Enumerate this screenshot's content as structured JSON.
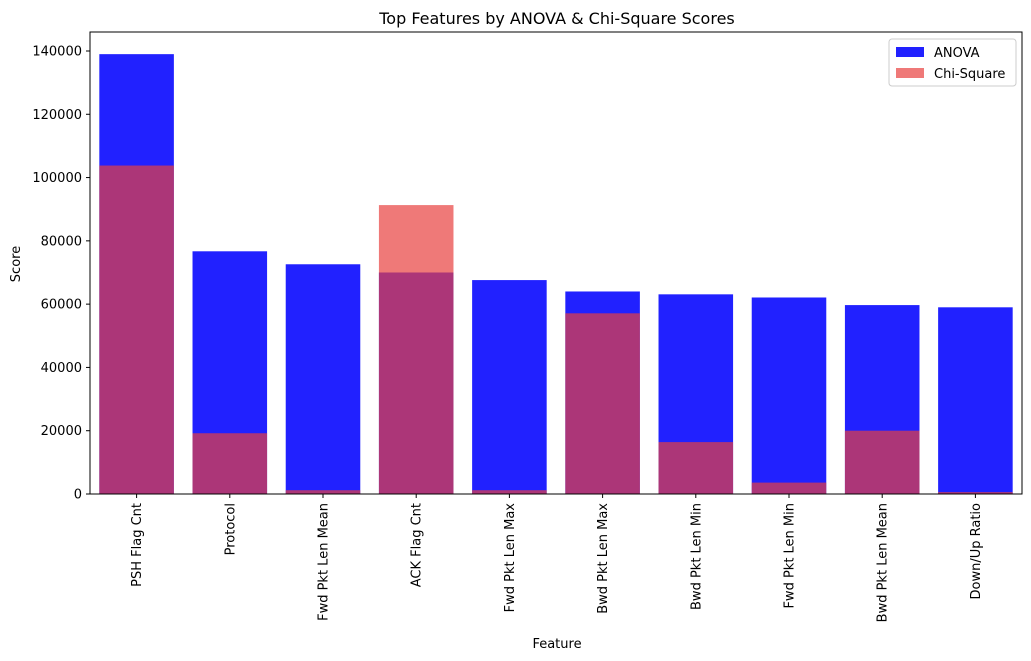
{
  "chart_data": {
    "type": "bar",
    "title": "Top Features by ANOVA & Chi-Square Scores",
    "xlabel": "Feature",
    "ylabel": "Score",
    "ylim": [
      0,
      146000
    ],
    "yticks": [
      0,
      20000,
      40000,
      60000,
      80000,
      100000,
      120000,
      140000
    ],
    "categories": [
      "PSH Flag Cnt",
      "Protocol",
      "Fwd Pkt Len Mean",
      "ACK Flag Cnt",
      "Fwd Pkt Len Max",
      "Bwd Pkt Len Max",
      "Bwd Pkt Len Min",
      "Fwd Pkt Len Min",
      "Bwd Pkt Len Mean",
      "Down/Up Ratio"
    ],
    "series": [
      {
        "name": "ANOVA",
        "color": "#0000ff",
        "opacity": 0.87,
        "values": [
          139000,
          76700,
          72600,
          70000,
          67600,
          64000,
          63100,
          62100,
          59700,
          59000
        ]
      },
      {
        "name": "Chi-Square",
        "color": "#e8403f",
        "opacity": 0.7,
        "values": [
          103800,
          19200,
          1200,
          91300,
          1200,
          57100,
          16400,
          3600,
          20000,
          600
        ]
      }
    ],
    "legend": "top-right",
    "grid": false
  }
}
